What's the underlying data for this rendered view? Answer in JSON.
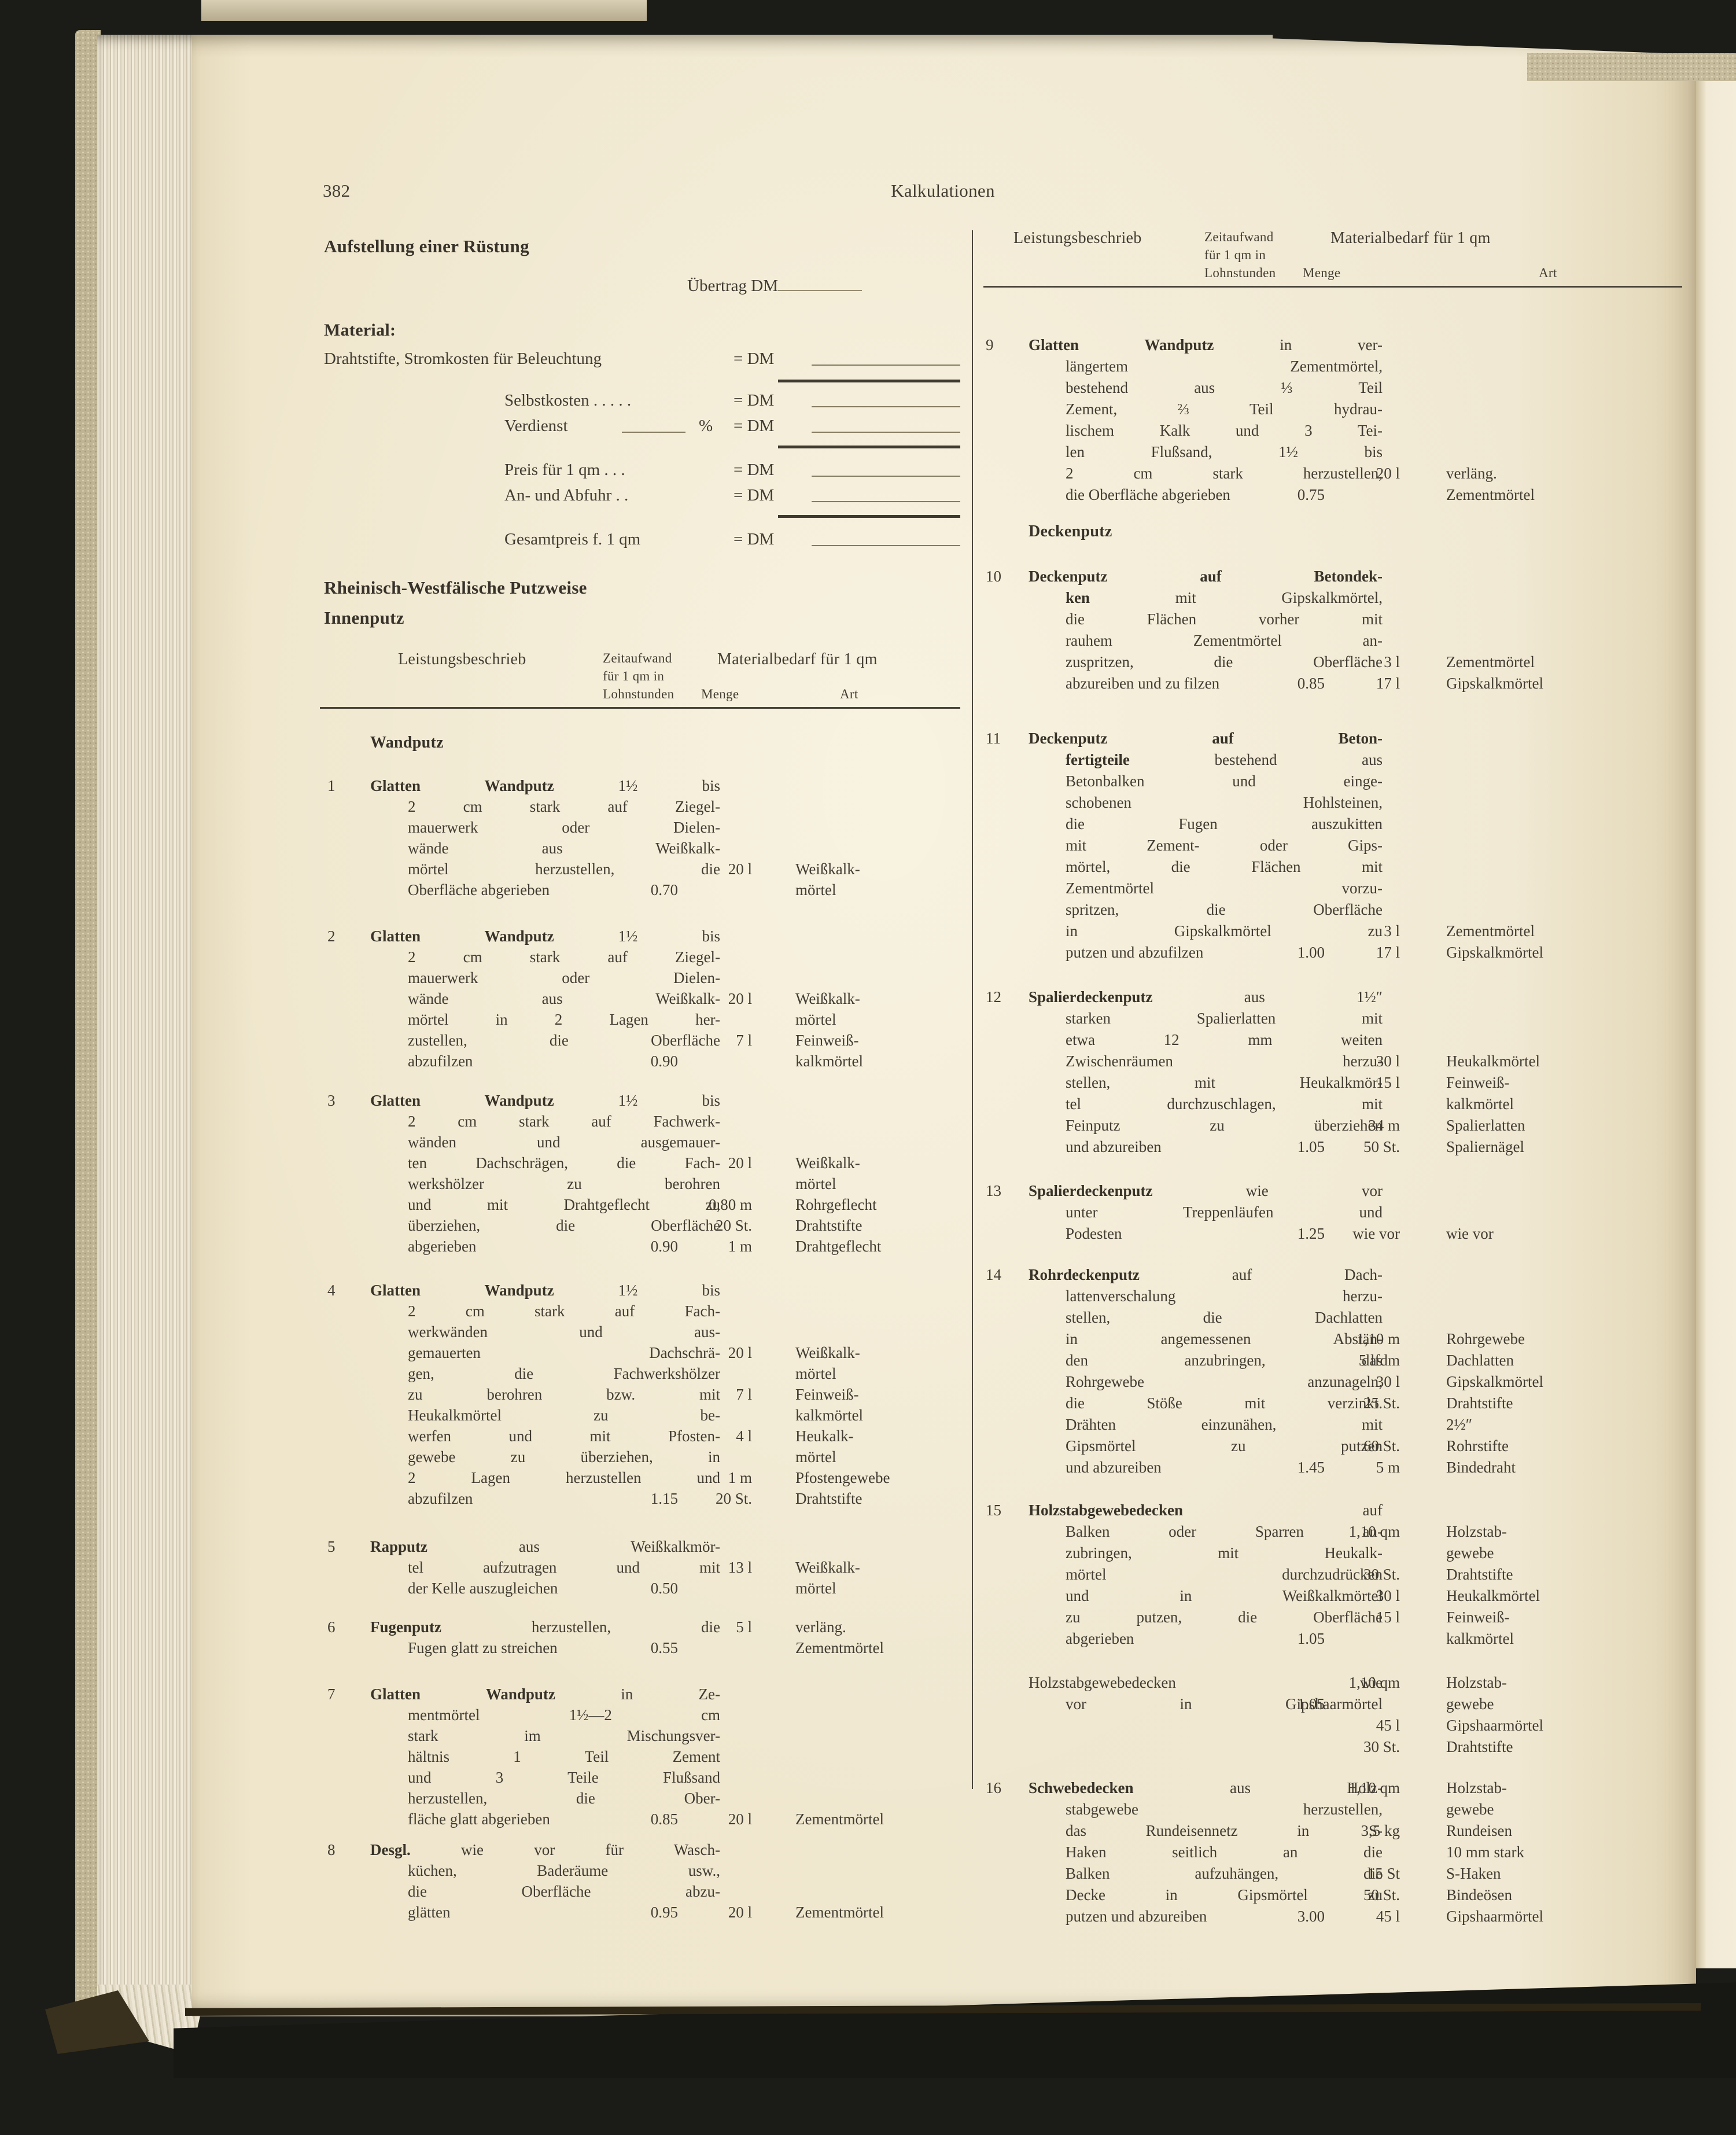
{
  "page": {
    "number": "382",
    "running_head": "Kalkulationen"
  },
  "scaffold_section": {
    "title": "Aufstellung einer Rüstung",
    "carryover_label": "Übertrag DM",
    "material_label": "Material:",
    "cost_rows": [
      {
        "label": "Drahtstifte, Stromkosten für Beleuchtung",
        "eq": "= DM",
        "wide": true
      },
      {
        "label": "Selbstkosten . . . . .",
        "eq": "= DM"
      },
      {
        "label": "Verdienst",
        "blank": true,
        "percent": "%",
        "eq": "= DM"
      },
      {
        "label": "Preis für 1 qm . . .",
        "eq": "= DM"
      },
      {
        "label": "An- und Abfuhr . .",
        "eq": "= DM"
      },
      {
        "label": "Gesamtpreis f. 1 qm",
        "eq": "= DM"
      }
    ]
  },
  "putz_section": {
    "title": "Rheinisch-Westfälische Putzweise",
    "subtitle": "Innenputz"
  },
  "table_header": {
    "col1": "Leistungsbeschrieb",
    "col2_lines": [
      "Zeitaufwand",
      "für 1 qm in",
      "Lohnstunden"
    ],
    "col3": "Materialbedarf für 1 qm",
    "col3a": "Menge",
    "col3b": "Art"
  },
  "left_column": {
    "subhead": "Wandputz",
    "items": [
      {
        "num": "1",
        "lines": [
          {
            "b": "Glatten Wandputz",
            "t": " 1½ bis"
          },
          {
            "t": "2 cm stark auf Ziegel-"
          },
          {
            "t": "mauerwerk oder Dielen-"
          },
          {
            "t": "wände aus Weißkalk-"
          },
          {
            "t": "mörtel herzustellen, die",
            "menge": "20 l",
            "art": "Weißkalk-"
          },
          {
            "t": "Oberfläche abgerieben",
            "zeit": "0.70",
            "art": "mörtel"
          }
        ]
      },
      {
        "num": "2",
        "lines": [
          {
            "b": "Glatten Wandputz",
            "t": " 1½ bis"
          },
          {
            "t": "2 cm stark auf Ziegel-"
          },
          {
            "t": "mauerwerk oder Dielen-"
          },
          {
            "t": "wände aus Weißkalk-",
            "menge": "20 l",
            "art": "Weißkalk-"
          },
          {
            "t": "mörtel in 2 Lagen her-",
            "art": "mörtel"
          },
          {
            "t": "zustellen, die Oberfläche",
            "menge": "7 l",
            "art": "Feinweiß-"
          },
          {
            "t": "abzufilzen",
            "zeit": "0.90",
            "art": "kalkmörtel"
          }
        ]
      },
      {
        "num": "3",
        "lines": [
          {
            "b": "Glatten Wandputz",
            "t": " 1½ bis"
          },
          {
            "t": "2 cm stark auf Fachwerk-"
          },
          {
            "t": "wänden und ausgemauer-"
          },
          {
            "t": "ten Dachschrägen, die Fach-",
            "menge": "20 l",
            "art": "Weißkalk-"
          },
          {
            "t": "werkshölzer zu berohren",
            "art": "mörtel"
          },
          {
            "t": "und mit Drahtgeflecht zu",
            "menge": "0,80 m",
            "art": "Rohrgeflecht"
          },
          {
            "t": "überziehen, die Oberfläche",
            "menge": "20 St.",
            "art": "Drahtstifte"
          },
          {
            "t": "abgerieben",
            "zeit": "0.90",
            "menge": "1 m",
            "art": "Drahtgeflecht"
          }
        ]
      },
      {
        "num": "4",
        "lines": [
          {
            "b": "Glatten Wandputz",
            "t": " 1½ bis"
          },
          {
            "t": "2 cm stark auf Fach-"
          },
          {
            "t": "werkwänden und aus-"
          },
          {
            "t": "gemauerten Dachschrä-",
            "menge": "20 l",
            "art": "Weißkalk-"
          },
          {
            "t": "gen, die Fachwerkshölzer",
            "art": "mörtel"
          },
          {
            "t": "zu berohren bzw. mit",
            "menge": "7 l",
            "art": "Feinweiß-"
          },
          {
            "t": "Heukalkmörtel zu be-",
            "art": "kalkmörtel"
          },
          {
            "t": "werfen und mit Pfosten-",
            "menge": "4 l",
            "art": "Heukalk-"
          },
          {
            "t": "gewebe zu überziehen, in",
            "art": "mörtel"
          },
          {
            "t": "2 Lagen herzustellen und",
            "menge": "1 m",
            "art": "Pfostengewebe"
          },
          {
            "t": "abzufilzen",
            "zeit": "1.15",
            "menge": "20 St.",
            "art": "Drahtstifte"
          }
        ]
      },
      {
        "num": "5",
        "lines": [
          {
            "b": "Rapputz",
            "t": " aus Weißkalkmör-"
          },
          {
            "t": "tel aufzutragen und mit",
            "menge": "13 l",
            "art": "Weißkalk-"
          },
          {
            "t": "der Kelle auszugleichen",
            "zeit": "0.50",
            "art": "mörtel"
          }
        ]
      },
      {
        "num": "6",
        "lines": [
          {
            "b": "Fugenputz",
            "t": " herzustellen, die",
            "menge": "5 l",
            "art": "verläng."
          },
          {
            "t": "Fugen glatt zu streichen",
            "zeit": "0.55",
            "art": "Zementmörtel"
          }
        ]
      },
      {
        "num": "7",
        "lines": [
          {
            "b": "Glatten Wandputz",
            "t": " in Ze-"
          },
          {
            "t": "mentmörtel 1½—2 cm"
          },
          {
            "t": "stark im Mischungsver-"
          },
          {
            "t": "hältnis 1 Teil Zement"
          },
          {
            "t": "und 3 Teile Flußsand"
          },
          {
            "t": "herzustellen, die Ober-"
          },
          {
            "t": "fläche glatt abgerieben",
            "zeit": "0.85",
            "menge": "20 l",
            "art": "Zementmörtel"
          }
        ]
      },
      {
        "num": "8",
        "lines": [
          {
            "b": "Desgl.",
            "t": " wie vor für Wasch-"
          },
          {
            "t": "küchen, Baderäume usw.,"
          },
          {
            "t": "die Oberfläche abzu-"
          },
          {
            "t": "glätten",
            "zeit": "0.95",
            "menge": "20 l",
            "art": "Zementmörtel"
          }
        ]
      }
    ]
  },
  "right_column": {
    "subhead": "Deckenputz",
    "items": [
      {
        "num": "9",
        "lines": [
          {
            "b": "Glatten Wandputz",
            "t": " in ver-"
          },
          {
            "t": "längertem Zementmörtel,"
          },
          {
            "t": "bestehend aus ⅓ Teil"
          },
          {
            "t": "Zement, ⅔ Teil hydrau-"
          },
          {
            "t": "lischem Kalk und 3 Tei-"
          },
          {
            "t": "len Flußsand, 1½ bis"
          },
          {
            "t": "2 cm stark herzustellen,",
            "menge": "20 l",
            "art": "verläng."
          },
          {
            "t": "die Oberfläche abgerieben",
            "zeit": "0.75",
            "art": "Zementmörtel"
          }
        ]
      },
      {
        "num": "10",
        "lines": [
          {
            "b": "Deckenputz auf Betondek-"
          },
          {
            "b": "ken",
            "t": " mit Gipskalkmörtel,"
          },
          {
            "t": "die Flächen vorher mit"
          },
          {
            "t": "rauhem Zementmörtel an-"
          },
          {
            "t": "zuspritzen, die Oberfläche",
            "menge": "3 l",
            "art": "Zementmörtel"
          },
          {
            "t": "abzureiben und zu filzen",
            "zeit": "0.85",
            "menge": "17 l",
            "art": "Gipskalkmörtel"
          }
        ]
      },
      {
        "num": "11",
        "lines": [
          {
            "b": "Deckenputz auf Beton-"
          },
          {
            "b": "fertigteile",
            "t": " bestehend aus"
          },
          {
            "t": "Betonbalken und einge-"
          },
          {
            "t": "schobenen Hohlsteinen,"
          },
          {
            "t": "die Fugen auszukitten"
          },
          {
            "t": "mit Zement- oder Gips-"
          },
          {
            "t": "mörtel, die Flächen mit"
          },
          {
            "t": "Zementmörtel vorzu-"
          },
          {
            "t": "spritzen, die Oberfläche"
          },
          {
            "t": "in Gipskalkmörtel zu",
            "menge": "3 l",
            "art": "Zementmörtel"
          },
          {
            "t": "putzen und abzufilzen",
            "zeit": "1.00",
            "menge": "17 l",
            "art": "Gipskalkmörtel"
          }
        ]
      },
      {
        "num": "12",
        "lines": [
          {
            "b": "Spalierdeckenputz",
            "t": " aus 1½″"
          },
          {
            "t": "starken Spalierlatten mit"
          },
          {
            "t": "etwa 12 mm weiten"
          },
          {
            "t": "Zwischenräumen herzu-",
            "menge": "30 l",
            "art": "Heukalkmörtel"
          },
          {
            "t": "stellen, mit Heukalkmör-",
            "menge": "15 l",
            "art": "Feinweiß-"
          },
          {
            "t": "tel durchzuschlagen, mit",
            "art": "kalkmörtel"
          },
          {
            "t": "Feinputz zu überziehen",
            "menge": "34 m",
            "art": "Spalierlatten"
          },
          {
            "t": "und abzureiben",
            "zeit": "1.05",
            "menge": "50 St.",
            "art": "Spaliernägel"
          }
        ]
      },
      {
        "num": "13",
        "lines": [
          {
            "b": "Spalierdeckenputz",
            "t": " wie vor"
          },
          {
            "t": "unter Treppenläufen und"
          },
          {
            "t": "Podesten",
            "zeit": "1.25",
            "menge": "wie vor",
            "art": "wie vor"
          }
        ]
      },
      {
        "num": "14",
        "lines": [
          {
            "b": "Rohrdeckenputz",
            "t": " auf Dach-"
          },
          {
            "t": "lattenverschalung herzu-"
          },
          {
            "t": "stellen, die Dachlatten"
          },
          {
            "t": "in angemessenen Abstän-",
            "menge": "1,10 m",
            "art": "Rohrgewebe"
          },
          {
            "t": "den anzubringen, das",
            "menge": "5 lfdm",
            "art": "Dachlatten"
          },
          {
            "t": "Rohrgewebe anzunageln,",
            "menge": "30 l",
            "art": "Gipskalkmörtel"
          },
          {
            "t": "die Stöße mit verzinkt.",
            "menge": "25 St.",
            "art": "Drahtstifte"
          },
          {
            "t": "Drähten einzunähen, mit",
            "art": "2½″"
          },
          {
            "t": "Gipsmörtel zu putzen",
            "menge": "60 St.",
            "art": "Rohrstifte"
          },
          {
            "t": "und abzureiben",
            "zeit": "1.45",
            "menge": "5 m",
            "art": "Bindedraht"
          }
        ]
      },
      {
        "num": "15",
        "lines": [
          {
            "b": "Holzstabgewebedecken",
            "t": " auf"
          },
          {
            "t": "Balken oder Sparren an-",
            "menge": "1,10 qm",
            "art": "Holzstab-"
          },
          {
            "t": "zubringen, mit Heukalk-",
            "art": "gewebe"
          },
          {
            "t": "mörtel durchzudrücken",
            "menge": "30 St.",
            "art": "Drahtstifte"
          },
          {
            "t": "und in Weißkalkmörtel",
            "menge": "30 l",
            "art": "Heukalkmörtel"
          },
          {
            "t": "zu putzen, die Oberfläche",
            "menge": "15 l",
            "art": "Feinweiß-"
          },
          {
            "t": "abgerieben",
            "zeit": "1.05",
            "art": "kalkmörtel"
          }
        ]
      },
      {
        "num": "",
        "lines": [
          {
            "t": "Holzstabgewebedecken wie",
            "menge": "1,10 qm",
            "art": "Holzstab-"
          },
          {
            "t": "vor in Gipshaarmörtel",
            "zeit": "1.05",
            "art": "gewebe"
          },
          {
            "t": "",
            "menge": "45 l",
            "art": "Gipshaarmörtel"
          },
          {
            "t": "",
            "menge": "30 St.",
            "art": "Drahtstifte"
          }
        ]
      },
      {
        "num": "16",
        "lines": [
          {
            "b": "Schwebedecken",
            "t": " aus Holz-",
            "menge": "1,10 qm",
            "art": "Holzstab-"
          },
          {
            "t": "stabgewebe herzustellen,",
            "art": "gewebe"
          },
          {
            "t": "das Rundeisennetz in S-",
            "menge": "3,5 kg",
            "art": "Rundeisen"
          },
          {
            "t": "Haken seitlich an die",
            "art": "10 mm stark"
          },
          {
            "t": "Balken aufzuhängen, die",
            "menge": "15 St",
            "art": "S-Haken"
          },
          {
            "t": "Decke in Gipsmörtel zu",
            "menge": "50 St.",
            "art": "Bindeösen"
          },
          {
            "t": "putzen und abzureiben",
            "zeit": "3.00",
            "menge": "45 l",
            "art": "Gipshaarmörtel"
          }
        ]
      }
    ]
  }
}
